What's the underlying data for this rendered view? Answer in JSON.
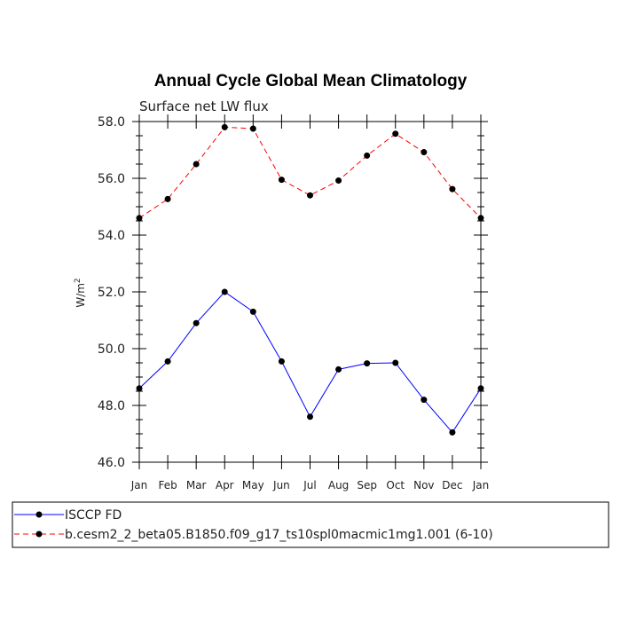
{
  "chart_data": {
    "type": "line",
    "title": "Annual Cycle Global Mean Climatology",
    "subtitle": "Surface net LW flux",
    "ylabel_base": "W/m",
    "ylabel_sup": "2",
    "categories": [
      "Jan",
      "Feb",
      "Mar",
      "Apr",
      "May",
      "Jun",
      "Jul",
      "Aug",
      "Sep",
      "Oct",
      "Nov",
      "Dec",
      "Jan"
    ],
    "ylim": [
      46.0,
      58.0
    ],
    "yticks": [
      "46.0",
      "48.0",
      "50.0",
      "52.0",
      "54.0",
      "56.0",
      "58.0"
    ],
    "grid": false,
    "legend_position": "bottom",
    "series": [
      {
        "name": "ISCCP FD",
        "color": "#0000ff",
        "dash": "solid",
        "values": [
          48.6,
          49.55,
          50.9,
          52.0,
          51.3,
          49.55,
          47.6,
          49.27,
          49.48,
          49.5,
          48.2,
          47.05,
          48.6
        ]
      },
      {
        "name": "b.cesm2_2_beta05.B1850.f09_g17_ts10spl0macmic1mg1.001 (6-10)",
        "color": "#ff0000",
        "dash": "dashed",
        "values": [
          54.6,
          55.27,
          56.5,
          57.8,
          57.75,
          55.95,
          55.4,
          55.92,
          56.8,
          57.57,
          56.92,
          55.62,
          54.6
        ]
      }
    ]
  }
}
